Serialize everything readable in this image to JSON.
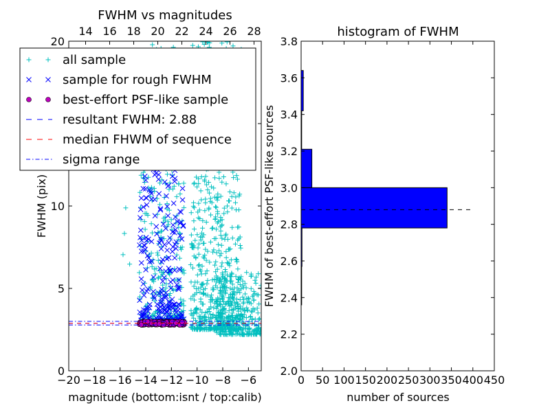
{
  "chart_data": [
    {
      "type": "scatter",
      "title": "FWHM vs magnitudes",
      "xlabel": "magnitude (bottom:isnt / top:calib)",
      "ylabel": "FWHM (pix)",
      "xlim": [
        -20,
        -5
      ],
      "ylim": [
        0,
        20
      ],
      "x_ticks": [
        "−20",
        "−18",
        "−16",
        "−14",
        "−12",
        "−10",
        "−8",
        "−6"
      ],
      "x_tick_values": [
        -20,
        -18,
        -16,
        -14,
        -12,
        -10,
        -8,
        -6
      ],
      "y_ticks": [
        "0",
        "5",
        "10",
        "15",
        "20"
      ],
      "y_tick_values": [
        0,
        5,
        10,
        15,
        20
      ],
      "top_x_ticks": [
        "14",
        "16",
        "18",
        "20",
        "22",
        "24",
        "26",
        "28"
      ],
      "top_x_tick_values": [
        14,
        16,
        18,
        20,
        22,
        24,
        26,
        28
      ],
      "top_xlim": [
        12.6,
        28.6
      ],
      "legend_placement": "upper-left",
      "series": [
        {
          "name": "all sample",
          "marker": "+",
          "color": "#00bfbf",
          "clusters": [
            {
              "x_range": [
                -14.5,
                -11.0
              ],
              "y_range": [
                3.0,
                20.0
              ],
              "count": 350
            },
            {
              "x_range": [
                -10.5,
                -6.5
              ],
              "y_range": [
                2.5,
                20.0
              ],
              "count": 650
            },
            {
              "x_range": [
                -8.5,
                -5.0
              ],
              "y_range": [
                2.2,
                6.0
              ],
              "count": 300
            },
            {
              "x_range": [
                -16.0,
                -15.0
              ],
              "y_range": [
                5.0,
                10.0
              ],
              "count": 4
            }
          ]
        },
        {
          "name": "sample for rough FWHM",
          "marker": "x",
          "color": "#0000ff",
          "clusters": [
            {
              "x_range": [
                -14.5,
                -11.0
              ],
              "y_range": [
                3.0,
                16.0
              ],
              "count": 260
            }
          ]
        },
        {
          "name": "best-effort PSF-like sample",
          "marker": "o",
          "color": "#bf00bf",
          "clusters": [
            {
              "x_range": [
                -14.5,
                -11.0
              ],
              "y_range": [
                2.78,
                3.0
              ],
              "count": 180
            }
          ]
        },
        {
          "name": "resultant FWHM: 2.88",
          "style": "dashed",
          "color": "#0000ff",
          "y": 2.88
        },
        {
          "name": "median FHWM of sequence",
          "style": "dashed",
          "color": "#ff0000",
          "y": 2.88
        },
        {
          "name": "sigma range",
          "style": "dashdot",
          "color": "#0000ff",
          "y": [
            2.78,
            3.0
          ]
        }
      ]
    },
    {
      "type": "bar",
      "orientation": "horizontal",
      "title": "histogram of FWHM",
      "xlabel": "number of sources",
      "ylabel": "FWHM of best-effort PSF-like sources",
      "xlim": [
        0,
        450
      ],
      "ylim": [
        2.0,
        3.8
      ],
      "x_ticks": [
        "0",
        "50",
        "100",
        "150",
        "200",
        "250",
        "300",
        "350",
        "400",
        "450"
      ],
      "x_tick_values": [
        0,
        50,
        100,
        150,
        200,
        250,
        300,
        350,
        400,
        450
      ],
      "y_ticks": [
        "2.0",
        "2.2",
        "2.4",
        "2.6",
        "2.8",
        "3.0",
        "3.2",
        "3.4",
        "3.6",
        "3.8"
      ],
      "y_tick_values": [
        2.0,
        2.2,
        2.4,
        2.6,
        2.8,
        3.0,
        3.2,
        3.4,
        3.6,
        3.8
      ],
      "bar_color": "#0000ff",
      "bins": [
        {
          "y0": 2.36,
          "y1": 2.57,
          "value": 1
        },
        {
          "y0": 2.57,
          "y1": 2.78,
          "value": 2
        },
        {
          "y0": 2.78,
          "y1": 3.0,
          "value": 340
        },
        {
          "y0": 3.0,
          "y1": 3.21,
          "value": 25
        },
        {
          "y0": 3.21,
          "y1": 3.42,
          "value": 0
        },
        {
          "y0": 3.42,
          "y1": 3.64,
          "value": 5
        }
      ],
      "reference_line": {
        "y": 2.88,
        "x_range": [
          0,
          400
        ],
        "style": "dashed",
        "color": "#000000"
      }
    }
  ]
}
